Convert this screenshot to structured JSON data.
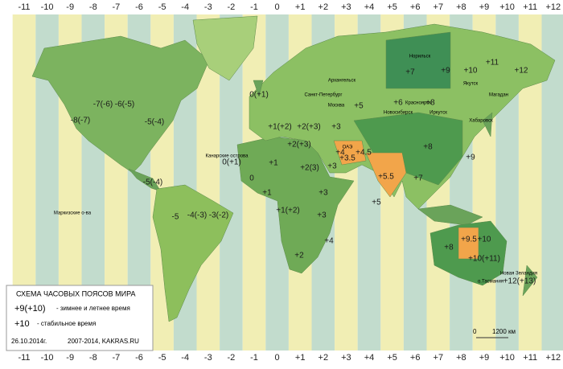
{
  "zones": [
    "-11",
    "-10",
    "-9",
    "-8",
    "-7",
    "-6",
    "-5",
    "-4",
    "-3",
    "-2",
    "-1",
    "0",
    "+1",
    "+2",
    "+3",
    "+4",
    "+5",
    "+6",
    "+7",
    "+8",
    "+9",
    "+10",
    "+11",
    "+12"
  ],
  "map_labels": [
    "-8(-7)",
    "-7(-6)",
    "-6(-5)",
    "-5(-4)",
    "-5(-4)",
    "-5",
    "-4(-3)",
    "-3(-2)",
    "0(+1)",
    "+1(+2)",
    "+2(+3)",
    "+2(+3)",
    "+3",
    "+4",
    "+5",
    "+6",
    "+7",
    "+8",
    "+9",
    "+10",
    "+11",
    "+12",
    "+1",
    "+2(3)",
    "+3",
    "+3",
    "+3",
    "+4",
    "+1",
    "0",
    "+1(+2)",
    "+2",
    "+3.5",
    "+4.5",
    "+5.5",
    "+5",
    "+8",
    "+7",
    "+9",
    "+8",
    "+9.5",
    "+10",
    "+10(+11)",
    "+12(+13)",
    "0(+1)"
  ],
  "places": [
    "Архангельск",
    "Москва",
    "Санкт-Петербург",
    "Новосибирск",
    "Красноярск",
    "Иркутск",
    "Якутск",
    "Магадан",
    "Хабаровск",
    "Норильск",
    "ОАЭ",
    "Канарские острова",
    "Новая Зеландия",
    "о.Тасмания",
    "Маркизские о-ва"
  ],
  "legend": {
    "title": "СХЕМА ЧАСОВЫХ ПОЯСОВ МИРА",
    "seasonal": "+9(+10)",
    "seasonal_text": "- зимнее и летнее время",
    "stable": "+10",
    "stable_text": "- стабильное время",
    "date": "26.10.2014г.",
    "source": "2007-2014, KAKRAS.RU"
  },
  "scale": {
    "start": "0",
    "end": "1200 км"
  }
}
